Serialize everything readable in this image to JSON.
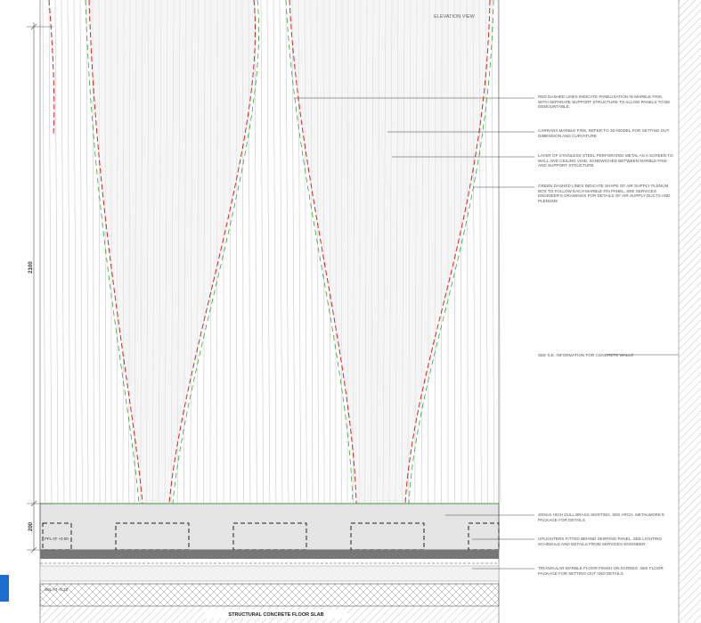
{
  "drawing": {
    "view_title": "ELEVATION VIEW",
    "dim_upper": "2100",
    "dim_lower": "200",
    "ffl_label": "FFL AT +0.00",
    "ssl_label": "SSL AT -0.22",
    "slab_label": "STRUCTURAL CONCRETE FLOOR SLAB"
  },
  "annotations": [
    "RED DASHED LINES INDICATE PANELISATION IN MARBLE FINS, WITH SEPARATE SUPPORT STRUCTURE TO ALLOW PANELS TO BE DEMOUNTABLE.",
    "CARRARA MARBLE FINS, REFER TO 3D MODEL FOR SETTING OUT DIMENSION AND CURVATURE",
    "LAYER OF STAINLESS STEEL PERFORATED METAL AS A SCREEN TO WALL AND CEILING VOID, SANDWICHED BETWEEN MARBLE FINS AND SUPPORT STRUCTURE",
    "GREEN DASHED LINES INDICATE SHAPE OF AIR SUPPLY PLENUM BOX TO FOLLOW EACH MARBLE FIN PANEL. SEE SERVICES ENGINEER'S DRAWINGS FOR DETAILS OF AIR SUPPLY DUCTS AND PLENUMS",
    "SEE S.E. INFORMATION FOR CONCRETE WALLS",
    "200mm HIGH DULL BRASS SKIRTING, SEE ARCH. METALWORK'S PACKAGE FOR DETAILS",
    "UPLIGHTERS FITTED BEHIND SKIRTING PANEL. SEE LIGHTING SCHEDULE AND DETAILS FROM SERVICES ENGINEER",
    "TRIANGULAR MARBLE FLOOR FINISH ON SCREED. SEE FLOOR PACKAGE FOR SETTING OUT AND DETAILS"
  ]
}
